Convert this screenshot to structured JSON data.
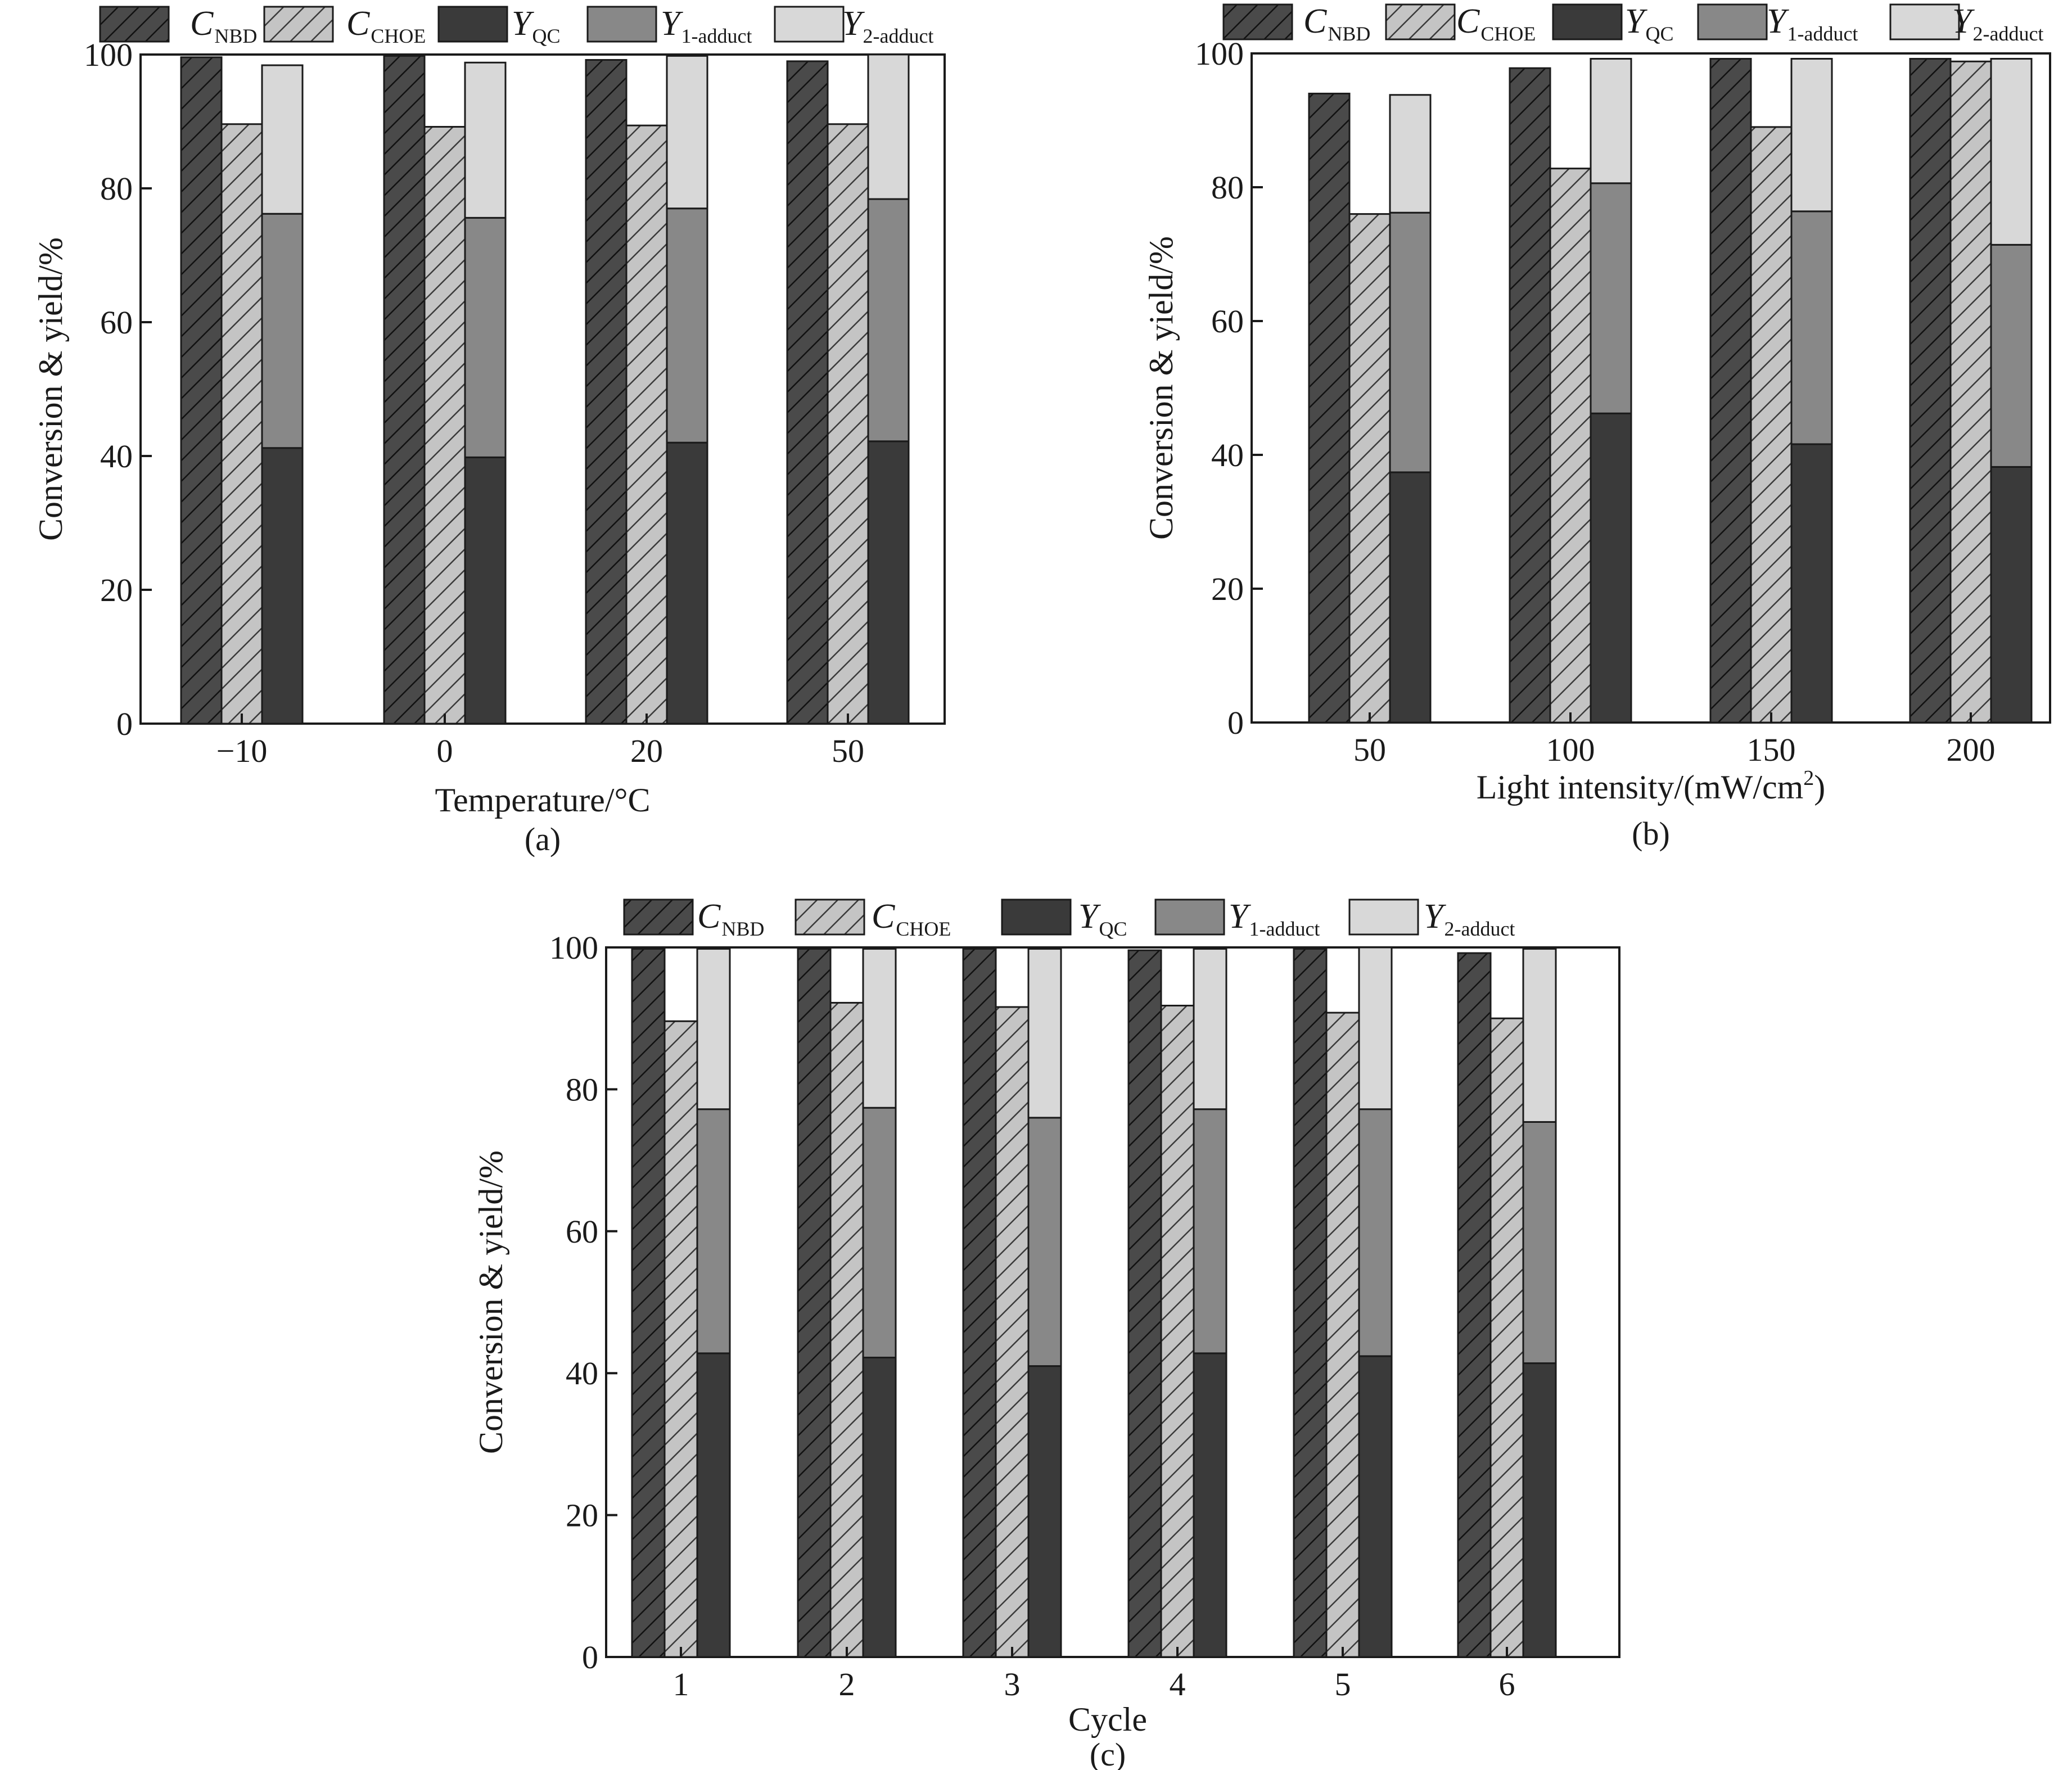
{
  "legend": [
    {
      "key": "C_NBD",
      "main": "C",
      "sub": "NBD",
      "fill": "#4a4a4a",
      "hatch": true
    },
    {
      "key": "C_CHOE",
      "main": "C",
      "sub": "CHOE",
      "fill": "#c4c4c4",
      "hatch": true
    },
    {
      "key": "Y_QC",
      "main": "Y",
      "sub": "QC",
      "fill": "#3a3a3a",
      "hatch": false
    },
    {
      "key": "Y_1",
      "main": "Y",
      "sub": "1-adduct",
      "fill": "#888888",
      "hatch": false
    },
    {
      "key": "Y_2",
      "main": "Y",
      "sub": "2-adduct",
      "fill": "#d8d8d8",
      "hatch": false
    }
  ],
  "chart_data": [
    {
      "id": "a",
      "type": "bar",
      "panel_label": "(a)",
      "xlabel": "Temperature/°C",
      "ylabel": "Conversion & yield/%",
      "ylim": [
        0,
        100
      ],
      "yticks": [
        0,
        20,
        40,
        60,
        80,
        100
      ],
      "categories": [
        "−10",
        "0",
        "20",
        "50"
      ],
      "series": [
        {
          "key": "C_NBD",
          "values": [
            99.6,
            99.8,
            99.2,
            99.0
          ]
        },
        {
          "key": "C_CHOE",
          "values": [
            89.6,
            89.2,
            89.4,
            89.6
          ]
        },
        {
          "key": "Y_QC",
          "values": [
            41.2,
            39.8,
            42.0,
            42.2
          ]
        },
        {
          "key": "Y_1",
          "values": [
            35.0,
            35.8,
            35.0,
            36.2
          ]
        },
        {
          "key": "Y_2",
          "values": [
            22.2,
            23.2,
            22.8,
            21.6
          ]
        }
      ]
    },
    {
      "id": "b",
      "type": "bar",
      "panel_label": "(b)",
      "xlabel": "Light intensity/(mW/cm",
      "xlabel_sup": "2",
      "xlabel_end": ")",
      "ylabel": "Conversion & yield/%",
      "ylim": [
        0,
        100
      ],
      "yticks": [
        0,
        20,
        40,
        60,
        80,
        100
      ],
      "categories": [
        "50",
        "100",
        "150",
        "200"
      ],
      "series": [
        {
          "key": "C_NBD",
          "values": [
            94.0,
            97.8,
            99.2,
            99.2
          ]
        },
        {
          "key": "C_CHOE",
          "values": [
            76.0,
            82.8,
            89.0,
            98.8
          ]
        },
        {
          "key": "Y_QC",
          "values": [
            37.4,
            46.2,
            41.6,
            38.2
          ]
        },
        {
          "key": "Y_1",
          "values": [
            38.8,
            34.4,
            34.8,
            33.2
          ]
        },
        {
          "key": "Y_2",
          "values": [
            17.6,
            18.6,
            22.8,
            27.8
          ]
        }
      ]
    },
    {
      "id": "c",
      "type": "bar",
      "panel_label": "(c)",
      "xlabel": "Cycle",
      "ylabel": "Conversion & yield/%",
      "ylim": [
        0,
        100
      ],
      "yticks": [
        0,
        20,
        40,
        60,
        80,
        100
      ],
      "categories": [
        "1",
        "2",
        "3",
        "4",
        "5",
        "6"
      ],
      "series": [
        {
          "key": "C_NBD",
          "values": [
            99.8,
            99.8,
            99.8,
            99.6,
            99.8,
            99.2
          ]
        },
        {
          "key": "C_CHOE",
          "values": [
            89.6,
            92.2,
            91.6,
            91.8,
            90.8,
            90.0
          ]
        },
        {
          "key": "Y_QC",
          "values": [
            42.8,
            42.2,
            41.0,
            42.8,
            42.4,
            41.4
          ]
        },
        {
          "key": "Y_1",
          "values": [
            34.4,
            35.2,
            35.0,
            34.4,
            34.8,
            34.0
          ]
        },
        {
          "key": "Y_2",
          "values": [
            22.6,
            22.4,
            23.8,
            22.6,
            22.8,
            24.4
          ]
        }
      ]
    }
  ]
}
